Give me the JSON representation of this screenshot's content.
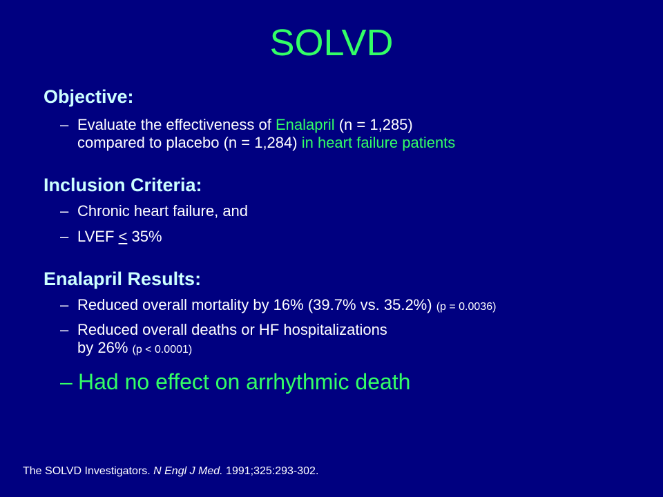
{
  "slide": {
    "title": "SOLVD",
    "objective": {
      "heading": "Objective:",
      "b1_pre": "Evaluate the effectiveness of ",
      "b1_green": "Enalapril",
      "b1_mid": " (n = 1,285)",
      "b1_line2": "compared to placebo (n = 1,284) ",
      "b1_green2": "in heart failure patients"
    },
    "inclusion": {
      "heading": "Inclusion Criteria:",
      "b1": "Chronic heart failure, and",
      "b2_pre": "LVEF ",
      "b2_sym": "<",
      "b2_post": " 35%"
    },
    "results": {
      "heading": "Enalapril Results:",
      "b1": "Reduced overall mortality by 16% (39.7% vs. 35.2%) ",
      "b1_small": "(p = 0.0036)",
      "b2_line1": "Reduced overall deaths or HF hospitalizations",
      "b2_line2": "by 26% ",
      "b2_small": "(p < 0.0001)",
      "b3": "Had no effect on arrhythmic death"
    },
    "dash": "–",
    "citation": {
      "pre": "The SOLVD Investigators. ",
      "journal": "N Engl J Med.",
      "post": " 1991;325:293-302."
    }
  }
}
